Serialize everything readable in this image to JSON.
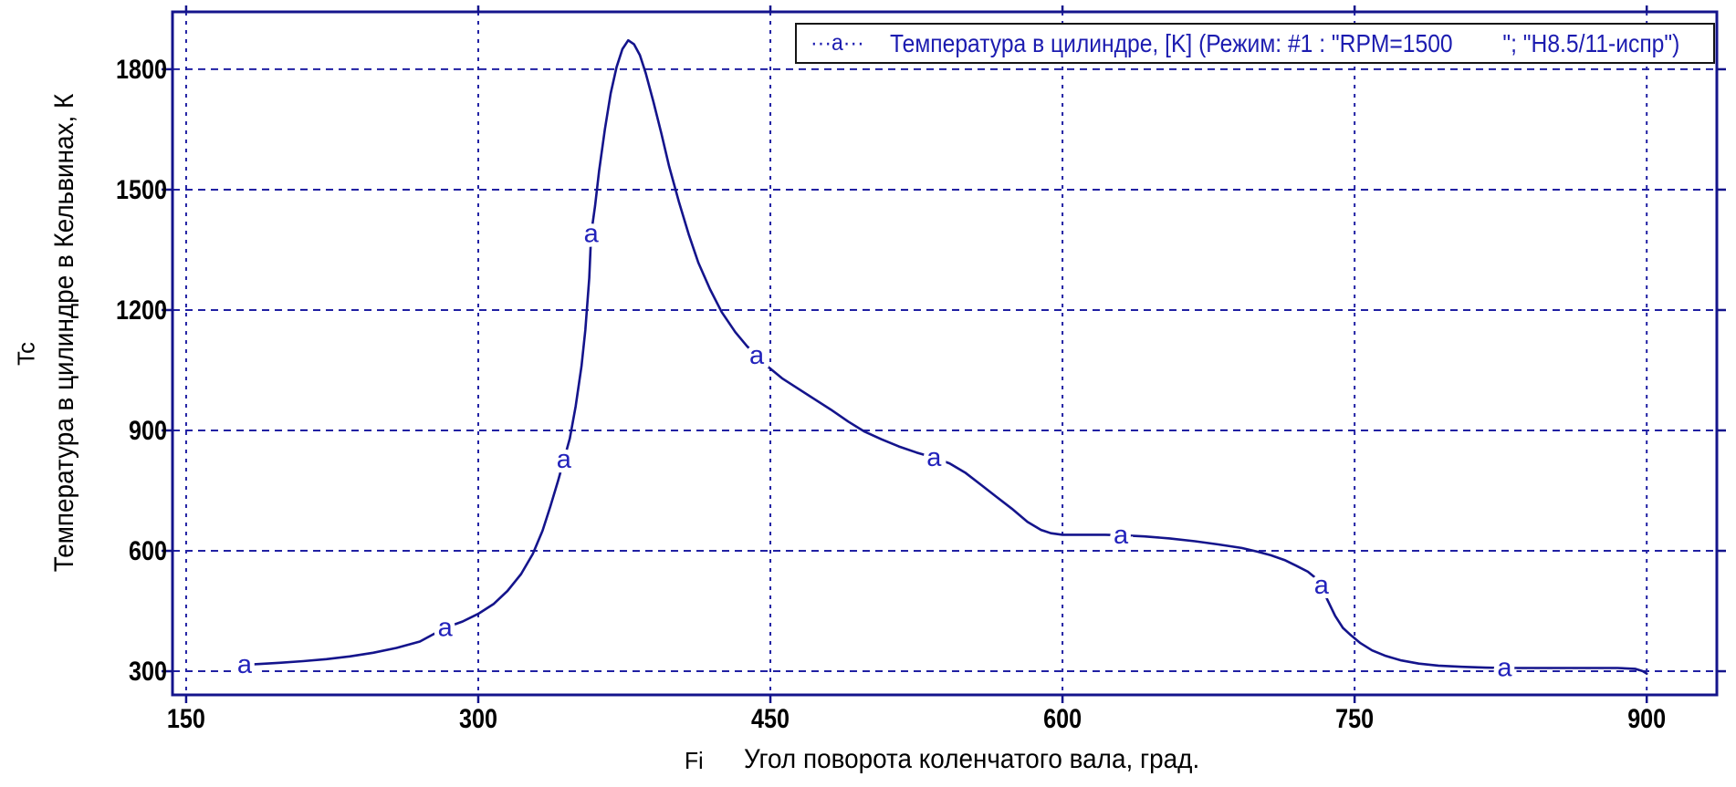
{
  "app": {
    "background": "#ffffff"
  },
  "colors": {
    "plot_line": "#14148c",
    "grid": "#2121a3",
    "border": "#14148c",
    "marker": "#2222bb",
    "tick_text": "#000000",
    "legend_text": "#1c1cb0",
    "legend_border": "#151515"
  },
  "chart_data": {
    "type": "line",
    "x_label_symbol": "Fi",
    "x_label": "Угол поворота коленчатого вала, град.",
    "y_label_symbol": "Tc",
    "y_label": "Температура в цилиндре в Кельвинах, К",
    "x_ticks": [
      150,
      300,
      450,
      600,
      750,
      900
    ],
    "y_ticks": [
      300,
      600,
      900,
      1200,
      1500,
      1800
    ],
    "x_domain": [
      143,
      936
    ],
    "y_domain": [
      241,
      1943
    ],
    "grid": "dashed",
    "legend": {
      "position": "top-right",
      "marker": "···a···",
      "label": "Температура в цилиндре, [K] (Режим: #1 : \"RPM=1500        \"; \"H8.5/11-испр\")"
    },
    "series": [
      {
        "name": "a",
        "marker_glyph": "a",
        "color": "#14148c",
        "points": [
          [
            180,
            316
          ],
          [
            188,
            318
          ],
          [
            198,
            321
          ],
          [
            210,
            325
          ],
          [
            222,
            330
          ],
          [
            234,
            337
          ],
          [
            246,
            346
          ],
          [
            258,
            358
          ],
          [
            270,
            374
          ],
          [
            283,
            408
          ],
          [
            292,
            424
          ],
          [
            300,
            443
          ],
          [
            308,
            468
          ],
          [
            315,
            500
          ],
          [
            322,
            542
          ],
          [
            328,
            592
          ],
          [
            333,
            650
          ],
          [
            337,
            710
          ],
          [
            341,
            775
          ],
          [
            344,
            827
          ],
          [
            347,
            880
          ],
          [
            350,
            960
          ],
          [
            353,
            1060
          ],
          [
            355,
            1150
          ],
          [
            357,
            1280
          ],
          [
            358,
            1390
          ],
          [
            360,
            1460
          ],
          [
            362,
            1545
          ],
          [
            365,
            1650
          ],
          [
            368,
            1740
          ],
          [
            371,
            1805
          ],
          [
            374,
            1850
          ],
          [
            377,
            1872
          ],
          [
            380,
            1862
          ],
          [
            383,
            1835
          ],
          [
            386,
            1790
          ],
          [
            390,
            1718
          ],
          [
            394,
            1640
          ],
          [
            398,
            1558
          ],
          [
            403,
            1470
          ],
          [
            408,
            1390
          ],
          [
            413,
            1318
          ],
          [
            419,
            1252
          ],
          [
            425,
            1195
          ],
          [
            432,
            1145
          ],
          [
            438,
            1110
          ],
          [
            443,
            1086
          ],
          [
            449,
            1058
          ],
          [
            456,
            1030
          ],
          [
            464,
            1005
          ],
          [
            472,
            980
          ],
          [
            481,
            952
          ],
          [
            490,
            922
          ],
          [
            498,
            898
          ],
          [
            507,
            878
          ],
          [
            516,
            860
          ],
          [
            525,
            845
          ],
          [
            534,
            832
          ],
          [
            542,
            818
          ],
          [
            550,
            795
          ],
          [
            558,
            765
          ],
          [
            566,
            735
          ],
          [
            574,
            705
          ],
          [
            582,
            672
          ],
          [
            589,
            652
          ],
          [
            594,
            644
          ],
          [
            600,
            640
          ],
          [
            612,
            640
          ],
          [
            622,
            640
          ],
          [
            630,
            639
          ],
          [
            642,
            636
          ],
          [
            655,
            631
          ],
          [
            668,
            624
          ],
          [
            680,
            616
          ],
          [
            692,
            607
          ],
          [
            700,
            598
          ],
          [
            707,
            589
          ],
          [
            714,
            577
          ],
          [
            720,
            563
          ],
          [
            726,
            548
          ],
          [
            730,
            532
          ],
          [
            733,
            514
          ],
          [
            736,
            478
          ],
          [
            740,
            438
          ],
          [
            744,
            408
          ],
          [
            748,
            390
          ],
          [
            753,
            370
          ],
          [
            759,
            352
          ],
          [
            766,
            338
          ],
          [
            774,
            327
          ],
          [
            783,
            319
          ],
          [
            793,
            314
          ],
          [
            805,
            311
          ],
          [
            817,
            309
          ],
          [
            827,
            308
          ],
          [
            845,
            308
          ],
          [
            865,
            308
          ],
          [
            885,
            308
          ],
          [
            894,
            306
          ],
          [
            898,
            300
          ],
          [
            900,
            294
          ]
        ],
        "marker_points": [
          [
            180,
            316
          ],
          [
            283,
            408
          ],
          [
            344,
            827
          ],
          [
            358,
            1390
          ],
          [
            443,
            1086
          ],
          [
            534,
            832
          ],
          [
            630,
            639
          ],
          [
            733,
            514
          ],
          [
            827,
            308
          ]
        ]
      }
    ]
  }
}
